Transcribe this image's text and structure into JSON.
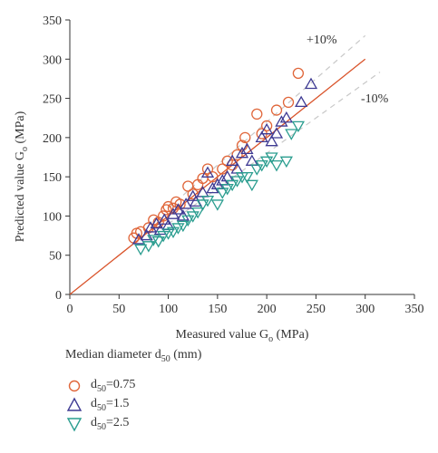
{
  "chart_data": {
    "type": "scatter",
    "xlabel_main": "Measured value G",
    "xlabel_sub": "o",
    "xlabel_unit": " (MPa)",
    "ylabel_main": "Predicted value G",
    "ylabel_sub": "o",
    "ylabel_unit": " (MPa)",
    "xlim": [
      0,
      350
    ],
    "ylim": [
      0,
      350
    ],
    "xticks": [
      0,
      50,
      100,
      150,
      200,
      250,
      300,
      350
    ],
    "yticks": [
      0,
      50,
      100,
      150,
      200,
      250,
      300,
      350
    ],
    "grid": false,
    "lines": [
      {
        "label": "",
        "x": [
          0,
          300
        ],
        "y": [
          0,
          300
        ],
        "color": "#d9532a",
        "style": "solid"
      },
      {
        "label": "+10%",
        "x": [
          100,
          300
        ],
        "y": [
          110,
          330
        ],
        "color": "#c8c8c8",
        "style": "dashed"
      },
      {
        "label": "-10%",
        "x": [
          100,
          315
        ],
        "y": [
          90,
          283.5
        ],
        "color": "#c8c8c8",
        "style": "dashed"
      }
    ],
    "series": [
      {
        "name_main": "d",
        "name_sub": "50",
        "name_value": "=0.75",
        "marker": "circle",
        "color": "#e0663a",
        "points": [
          [
            65,
            72
          ],
          [
            68,
            78
          ],
          [
            72,
            80
          ],
          [
            80,
            85
          ],
          [
            85,
            95
          ],
          [
            90,
            92
          ],
          [
            95,
            100
          ],
          [
            98,
            108
          ],
          [
            100,
            112
          ],
          [
            105,
            110
          ],
          [
            108,
            118
          ],
          [
            112,
            115
          ],
          [
            120,
            138
          ],
          [
            125,
            128
          ],
          [
            130,
            140
          ],
          [
            135,
            148
          ],
          [
            140,
            160
          ],
          [
            145,
            150
          ],
          [
            155,
            160
          ],
          [
            160,
            170
          ],
          [
            165,
            165
          ],
          [
            170,
            178
          ],
          [
            175,
            190
          ],
          [
            178,
            200
          ],
          [
            190,
            230
          ],
          [
            195,
            205
          ],
          [
            200,
            215
          ],
          [
            210,
            235
          ],
          [
            222,
            245
          ],
          [
            232,
            282
          ]
        ]
      },
      {
        "name_main": "d",
        "name_sub": "50",
        "name_value": "=1.5",
        "marker": "triangle-up",
        "color": "#3e3a93",
        "points": [
          [
            70,
            70
          ],
          [
            78,
            75
          ],
          [
            82,
            85
          ],
          [
            88,
            90
          ],
          [
            92,
            82
          ],
          [
            96,
            95
          ],
          [
            100,
            88
          ],
          [
            105,
            102
          ],
          [
            110,
            108
          ],
          [
            115,
            100
          ],
          [
            118,
            115
          ],
          [
            125,
            125
          ],
          [
            128,
            118
          ],
          [
            135,
            130
          ],
          [
            140,
            155
          ],
          [
            145,
            135
          ],
          [
            150,
            140
          ],
          [
            155,
            145
          ],
          [
            160,
            150
          ],
          [
            165,
            170
          ],
          [
            170,
            160
          ],
          [
            175,
            180
          ],
          [
            180,
            185
          ],
          [
            185,
            170
          ],
          [
            195,
            200
          ],
          [
            200,
            210
          ],
          [
            205,
            195
          ],
          [
            210,
            205
          ],
          [
            215,
            220
          ],
          [
            220,
            225
          ],
          [
            235,
            245
          ],
          [
            245,
            268
          ]
        ]
      },
      {
        "name_main": "d",
        "name_sub": "50",
        "name_value": "=2.5",
        "marker": "triangle-down",
        "color": "#2a9d8f",
        "points": [
          [
            72,
            58
          ],
          [
            80,
            62
          ],
          [
            85,
            70
          ],
          [
            90,
            68
          ],
          [
            95,
            75
          ],
          [
            100,
            78
          ],
          [
            105,
            80
          ],
          [
            110,
            85
          ],
          [
            115,
            88
          ],
          [
            120,
            95
          ],
          [
            125,
            100
          ],
          [
            130,
            105
          ],
          [
            135,
            115
          ],
          [
            140,
            120
          ],
          [
            150,
            115
          ],
          [
            155,
            130
          ],
          [
            160,
            135
          ],
          [
            165,
            140
          ],
          [
            170,
            145
          ],
          [
            175,
            150
          ],
          [
            180,
            150
          ],
          [
            185,
            140
          ],
          [
            190,
            160
          ],
          [
            195,
            165
          ],
          [
            200,
            170
          ],
          [
            205,
            175
          ],
          [
            210,
            165
          ],
          [
            220,
            170
          ],
          [
            225,
            205
          ],
          [
            232,
            215
          ]
        ]
      }
    ],
    "annotations": [
      {
        "text": "+10%"
      },
      {
        "text": "-10%"
      }
    ],
    "legend_title_main": "Median diameter d",
    "legend_title_sub": "50",
    "legend_title_unit": " (mm)"
  }
}
